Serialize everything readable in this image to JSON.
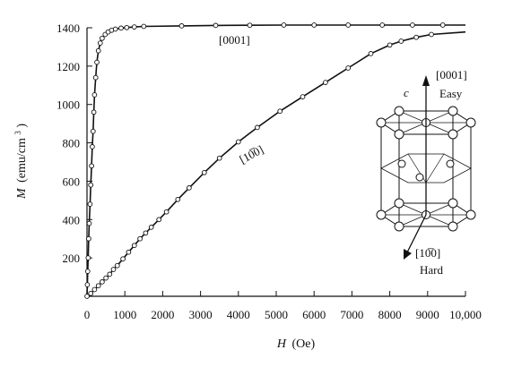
{
  "chart_data": {
    "type": "scatter",
    "xlabel_var": "H",
    "xlabel_unit": "(Oe)",
    "ylabel_var": "M",
    "ylabel_unit": "(emu/cm",
    "ylabel_unit_sup": "3",
    "ylabel_unit_close": ")",
    "xlim": [
      0,
      10000
    ],
    "ylim": [
      0,
      1400
    ],
    "x_ticks": [
      0,
      1000,
      2000,
      3000,
      4000,
      5000,
      6000,
      7000,
      8000,
      9000,
      10000
    ],
    "x_tick_labels": [
      "0",
      "1000",
      "2000",
      "3000",
      "4000",
      "5000",
      "6000",
      "7000",
      "8000",
      "9000",
      "10,000"
    ],
    "y_ticks": [
      200,
      400,
      600,
      800,
      1000,
      1200,
      1400
    ],
    "y_tick_labels": [
      "200",
      "400",
      "600",
      "800",
      "1000",
      "1200",
      "1400"
    ],
    "grid": false,
    "series": [
      {
        "name": "[0001]",
        "color": "#111111",
        "marker": "open-circle",
        "x": [
          0,
          10,
          20,
          30,
          45,
          60,
          80,
          100,
          120,
          140,
          160,
          180,
          200,
          230,
          260,
          300,
          350,
          400,
          480,
          560,
          650,
          750,
          900,
          1050,
          1250,
          1500,
          2500,
          3400,
          4300,
          5200,
          6000,
          6900,
          7800,
          8600,
          9400
        ],
        "y": [
          0,
          60,
          130,
          200,
          300,
          380,
          480,
          580,
          680,
          780,
          860,
          960,
          1050,
          1140,
          1220,
          1280,
          1320,
          1345,
          1365,
          1378,
          1387,
          1393,
          1398,
          1401,
          1404,
          1407,
          1410,
          1412,
          1413,
          1414,
          1414,
          1414,
          1414,
          1414,
          1414
        ]
      },
      {
        "name": "[10̅0]",
        "color": "#111111",
        "marker": "open-circle",
        "x": [
          100,
          200,
          300,
          400,
          500,
          600,
          700,
          800,
          950,
          1100,
          1250,
          1400,
          1550,
          1700,
          1900,
          2100,
          2400,
          2700,
          3100,
          3500,
          4000,
          4500,
          5100,
          5700,
          6300,
          6900,
          7500,
          8000,
          8300,
          8700,
          9100
        ],
        "y": [
          15,
          35,
          55,
          75,
          95,
          115,
          140,
          160,
          195,
          230,
          265,
          300,
          330,
          360,
          400,
          440,
          505,
          565,
          645,
          720,
          805,
          880,
          965,
          1040,
          1115,
          1190,
          1265,
          1310,
          1330,
          1350,
          1365
        ]
      }
    ],
    "annotations": {
      "easy_axis_label": "[0001]",
      "hard_axis_label": "[10̅0]",
      "inset_easy_axis": "[0001]",
      "inset_easy_word": "Easy",
      "inset_c_label": "c",
      "inset_hard_axis": "[10̅0]",
      "inset_hard_word": "Hard"
    }
  }
}
